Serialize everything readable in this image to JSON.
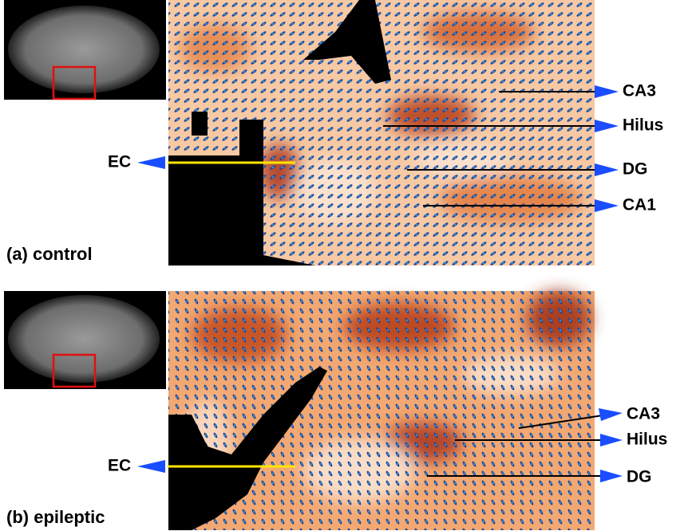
{
  "panels": [
    {
      "caption": "(a) control",
      "left_label": "EC",
      "right_labels": [
        "CA3",
        "Hilus",
        "DG",
        "CA1"
      ]
    },
    {
      "caption": "(b) epileptic",
      "left_label": "EC",
      "right_labels": [
        "CA3",
        "Hilus",
        "DG"
      ]
    }
  ]
}
